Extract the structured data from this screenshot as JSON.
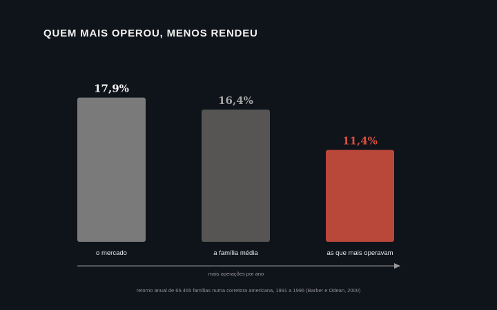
{
  "title": "QUEM MAIS OPEROU, MENOS RENDEU",
  "source": "retorno anual de 66.465 famílias numa corretora americana, 1991 a 1996 (Barber e Odean, 2000)",
  "chart_data": {
    "type": "bar",
    "title": "QUEM MAIS OPEROU, MENOS RENDEU",
    "categories": [
      "o mercado",
      "a família média",
      "as que mais operavam"
    ],
    "values": [
      17.9,
      16.4,
      11.4
    ],
    "value_labels": [
      "17,9%",
      "16,4%",
      "11,4%"
    ],
    "bar_colors": [
      "#7a7a7a",
      "#565553",
      "#b9473a"
    ],
    "label_colors": [
      "#f2f2f2",
      "#a3a3a3",
      "#d9503f"
    ],
    "xlabel": "mais operações por ano",
    "ylabel": "",
    "ylim": [
      0,
      20
    ],
    "grid": false,
    "legend": "none"
  }
}
